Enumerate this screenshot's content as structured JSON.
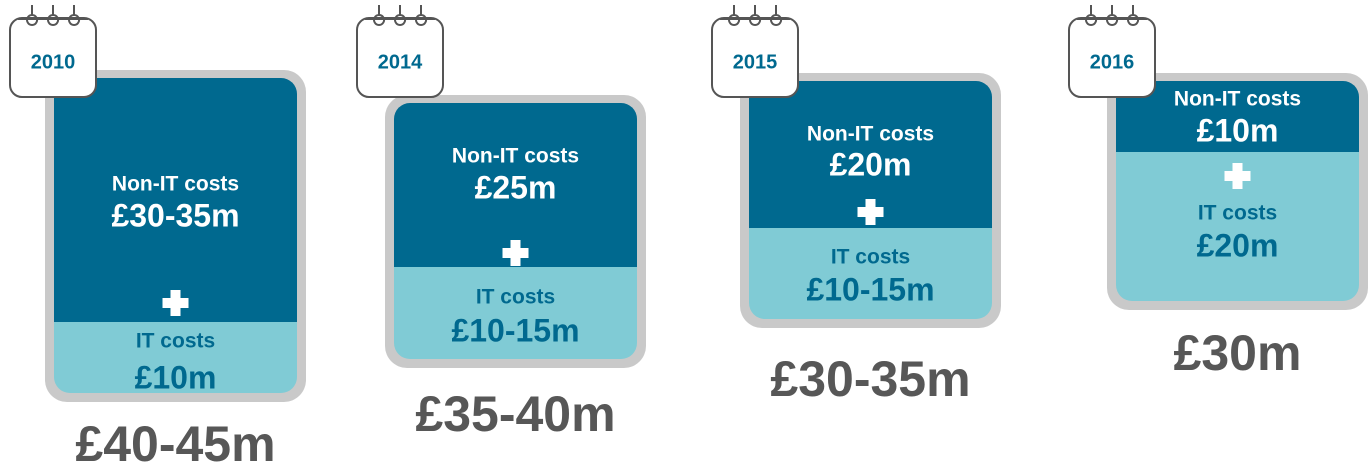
{
  "panels": [
    {
      "year": "2010",
      "non_it_label": "Non-IT costs",
      "non_it_value": "£30-35m",
      "it_label": "IT costs",
      "it_value": "£10m",
      "total": "£40-45m"
    },
    {
      "year": "2014",
      "non_it_label": "Non-IT costs",
      "non_it_value": "£25m",
      "it_label": "IT costs",
      "it_value": "£10-15m",
      "total": "£35-40m"
    },
    {
      "year": "2015",
      "non_it_label": "Non-IT costs",
      "non_it_value": "£20m",
      "it_label": "IT costs",
      "it_value": "£10-15m",
      "total": "£30-35m"
    },
    {
      "year": "2016",
      "non_it_label": "Non-IT costs",
      "non_it_value": "£10m",
      "it_label": "IT costs",
      "it_value": "£20m",
      "total": "£30m"
    }
  ]
}
